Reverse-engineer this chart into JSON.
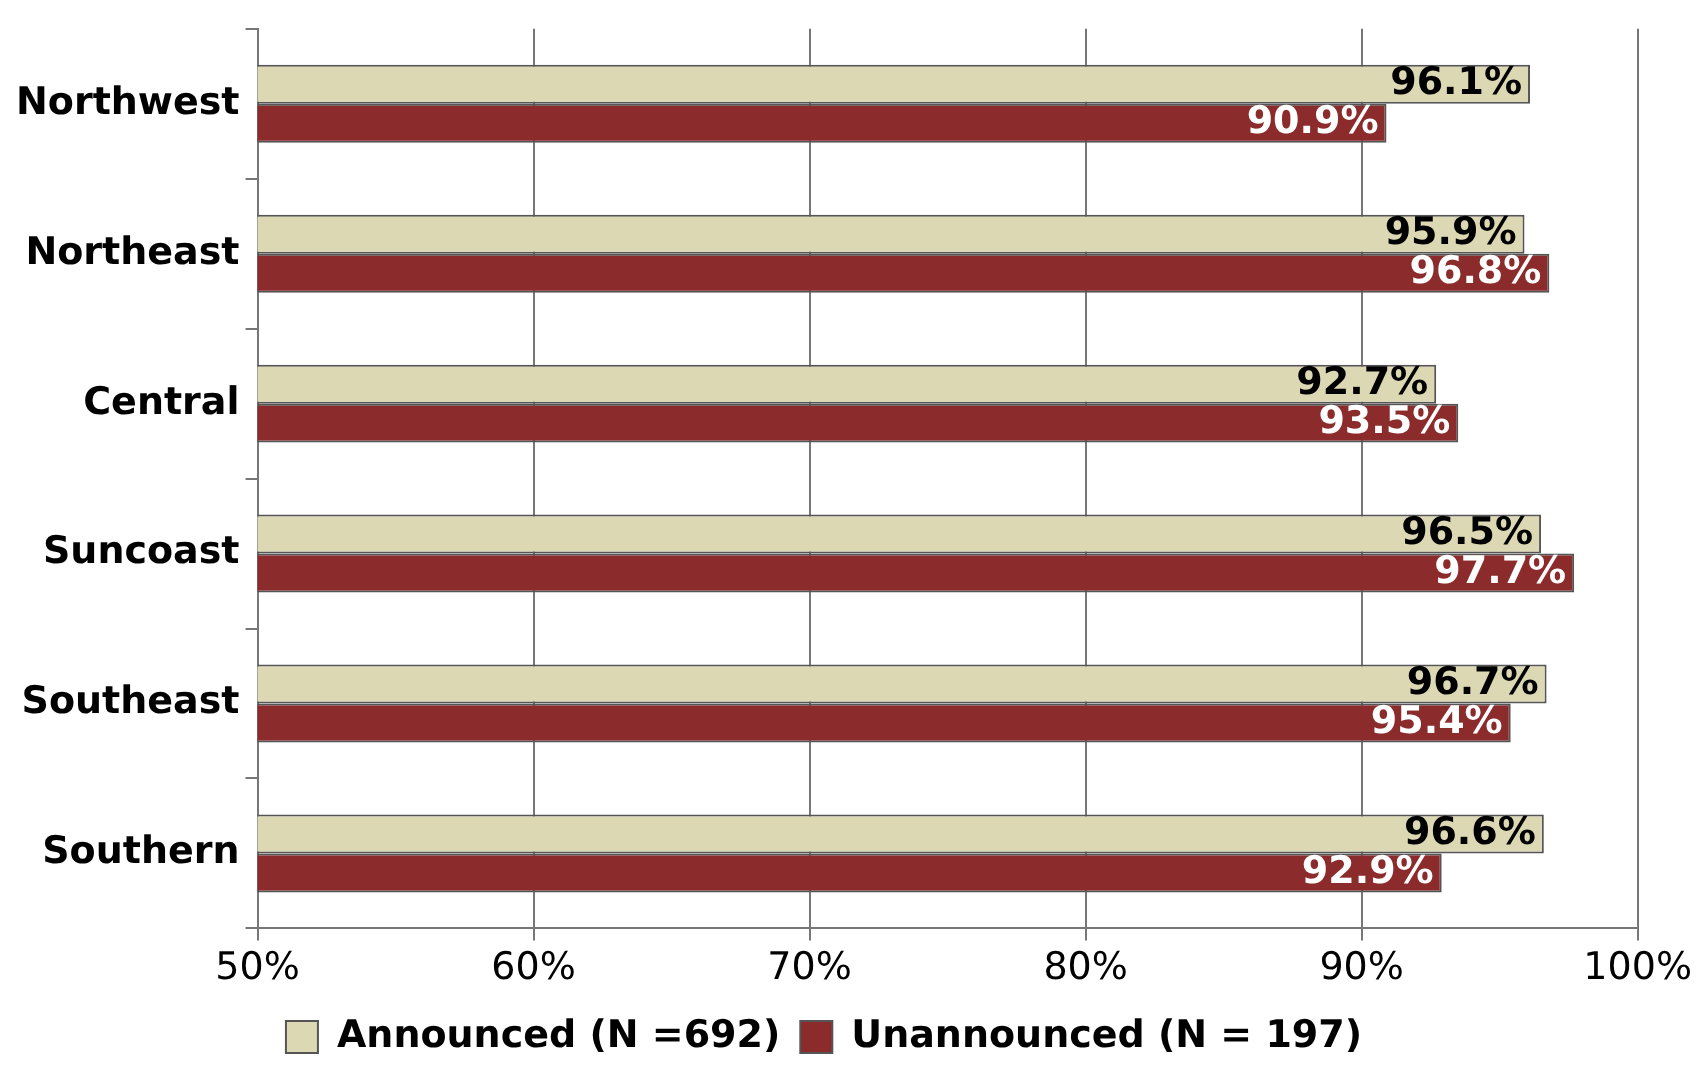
{
  "chart_data": {
    "type": "bar",
    "orientation": "horizontal",
    "categories": [
      "Northwest",
      "Northeast",
      "Central",
      "Suncoast",
      "Southeast",
      "Southern"
    ],
    "series": [
      {
        "name": "Announced (N =692)",
        "color": "#ddd8b4",
        "values": [
          96.1,
          95.9,
          92.7,
          96.5,
          96.7,
          96.6
        ],
        "value_labels": [
          "96.1%",
          "95.9%",
          "92.7%",
          "96.5%",
          "96.7%",
          "96.6%"
        ]
      },
      {
        "name": "Unannounced (N = 197)",
        "color": "#8c2b2b",
        "values": [
          90.9,
          96.8,
          93.5,
          97.7,
          95.4,
          92.9
        ],
        "value_labels": [
          "90.9%",
          "96.8%",
          "93.5%",
          "97.7%",
          "95.4%",
          "92.9%"
        ]
      }
    ],
    "xlim": [
      50,
      100
    ],
    "xticks": [
      {
        "value": 50,
        "label": "50%"
      },
      {
        "value": 60,
        "label": "60%"
      },
      {
        "value": 70,
        "label": "70%"
      },
      {
        "value": 80,
        "label": "80%"
      },
      {
        "value": 90,
        "label": "90%"
      },
      {
        "value": 100,
        "label": "100%"
      }
    ],
    "grid": "x",
    "legend": "bottom"
  }
}
